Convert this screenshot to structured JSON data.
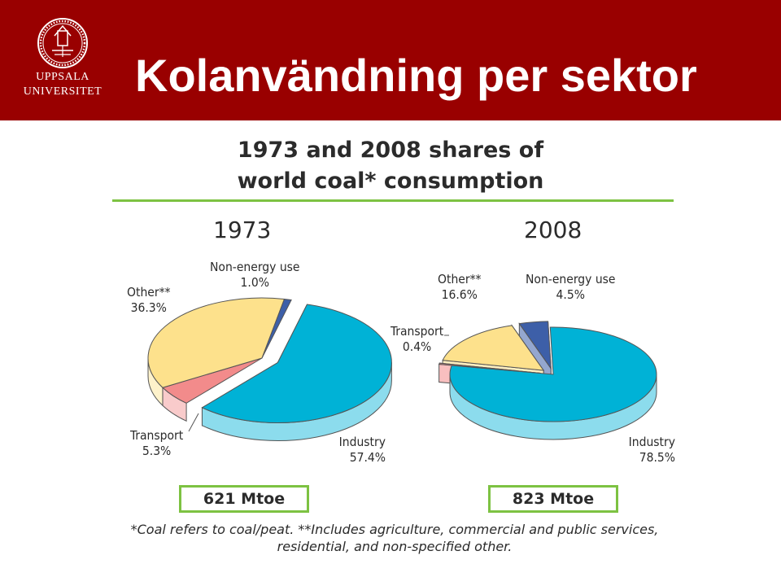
{
  "header": {
    "title": "Kolanvändning per sektor",
    "logo_line1": "UPPSALA",
    "logo_line2": "UNIVERSITET",
    "background": "#990000"
  },
  "chart_data": {
    "type": "pie",
    "title": "1973 and 2008 shares of world coal* consumption",
    "title_line1": "1973 and 2008 shares of",
    "title_line2": "world coal* consumption",
    "charts": [
      {
        "year": "1973",
        "total": "621 Mtoe",
        "slices": [
          {
            "name": "Industry",
            "value": 57.4,
            "value_label": "57.4%",
            "color": "#00b2d6",
            "exploded": true
          },
          {
            "name": "Transport",
            "value": 5.3,
            "value_label": "5.3%",
            "color": "#f28b8b"
          },
          {
            "name": "Other**",
            "value": 36.3,
            "value_label": "36.3%",
            "color": "#fde18c"
          },
          {
            "name": "Non-energy use",
            "value": 1.0,
            "value_label": "1.0%",
            "color": "#3d5fa8"
          }
        ]
      },
      {
        "year": "2008",
        "total": "823 Mtoe",
        "slices": [
          {
            "name": "Industry",
            "value": 78.5,
            "value_label": "78.5%",
            "color": "#00b2d6"
          },
          {
            "name": "Transport",
            "value": 0.4,
            "value_label": "0.4%",
            "color": "#f28b8b",
            "exploded": true
          },
          {
            "name": "Other**",
            "value": 16.6,
            "value_label": "16.6%",
            "color": "#fde18c",
            "exploded": true
          },
          {
            "name": "Non-energy use",
            "value": 4.5,
            "value_label": "4.5%",
            "color": "#3d5fa8",
            "exploded": true
          }
        ]
      }
    ],
    "footnote_line1": "*Coal refers to coal/peat. **Includes agriculture, commercial and public services,",
    "footnote_line2": "residential, and non-specified other."
  }
}
